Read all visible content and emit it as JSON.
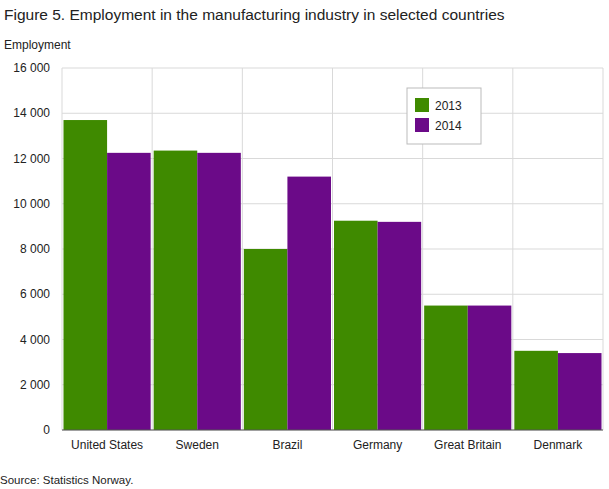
{
  "chart_data": {
    "type": "bar",
    "title": "Figure 5. Employment in the manufacturing industry in selected countries",
    "y_label": "Employment",
    "source": "Source: Statistics Norway.",
    "categories": [
      "United States",
      "Sweden",
      "Brazil",
      "Germany",
      "Great Britain",
      "Denmark"
    ],
    "series": [
      {
        "name": "2013",
        "color": "#3f8a00",
        "values": [
          13700,
          12350,
          8000,
          9250,
          5500,
          3500
        ]
      },
      {
        "name": "2014",
        "color": "#6b0a88",
        "values": [
          12250,
          12250,
          11200,
          9200,
          5500,
          3400
        ]
      }
    ],
    "ylim": [
      0,
      16000
    ],
    "yticks": [
      0,
      {
        "value": 2000,
        "label": "2 000"
      },
      {
        "value": 4000,
        "label": "4 000"
      },
      {
        "value": 6000,
        "label": "6 000"
      },
      {
        "value": 8000,
        "label": "8 000"
      },
      {
        "value": 10000,
        "label": "10 000"
      },
      {
        "value": 12000,
        "label": "12 000"
      },
      {
        "value": 14000,
        "label": "14 000"
      },
      {
        "value": 16000,
        "label": "16 000"
      }
    ],
    "grid": true,
    "legend": "top-right"
  }
}
